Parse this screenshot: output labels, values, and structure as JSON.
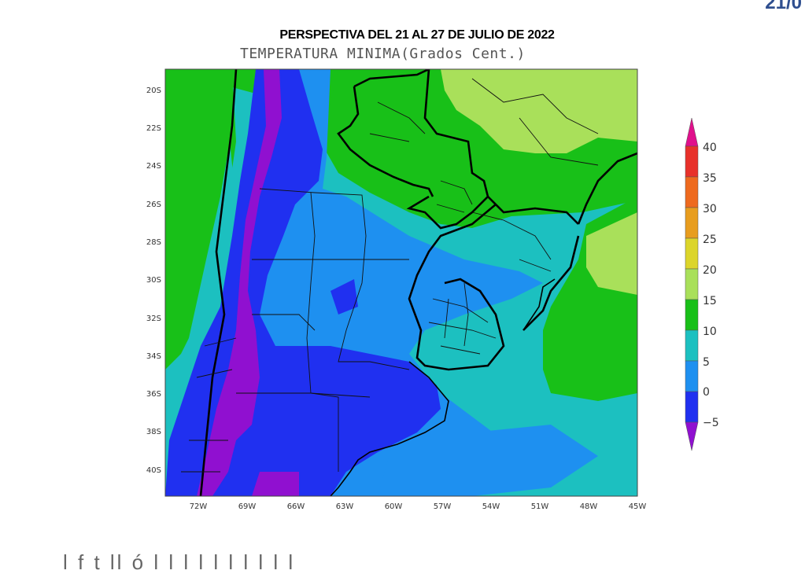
{
  "header": {
    "corner_text": "21/0",
    "title": "PERSPECTIVA DEL 21 AL 27 DE JULIO DE 2022",
    "subtitle": "TEMPERATURA MINIMA(Grados Cent.)"
  },
  "map": {
    "lat_labels": [
      "20S",
      "22S",
      "24S",
      "26S",
      "28S",
      "30S",
      "32S",
      "34S",
      "36S",
      "38S",
      "40S"
    ],
    "lon_labels": [
      "72W",
      "69W",
      "66W",
      "63W",
      "60W",
      "57W",
      "54W",
      "51W",
      "48W",
      "45W"
    ]
  },
  "colorbar": {
    "labels": [
      "40",
      "35",
      "30",
      "25",
      "20",
      "15",
      "10",
      "5",
      "0",
      "−5"
    ],
    "colors": [
      "#e0108c",
      "#e8312a",
      "#ee6a1e",
      "#e89d1e",
      "#dcd52a",
      "#a9e05a",
      "#18c018",
      "#1cc0c0",
      "#1e90f0",
      "#2030f0",
      "#9010d0"
    ]
  },
  "footer": {
    "bottom_text": "l f t  ll  ó        l             l  l    l     l   l  l  l  l l"
  }
}
